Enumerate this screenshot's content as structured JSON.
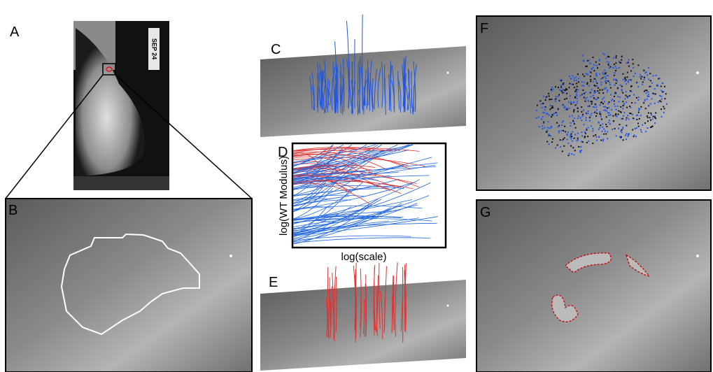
{
  "panel_labels": [
    "A",
    "B",
    "C",
    "D",
    "E",
    "F",
    "G"
  ],
  "film_marker": "SEP 24",
  "plot": {
    "y_label": "log(WT Modulus)",
    "x_label": "log(scale)"
  }
}
